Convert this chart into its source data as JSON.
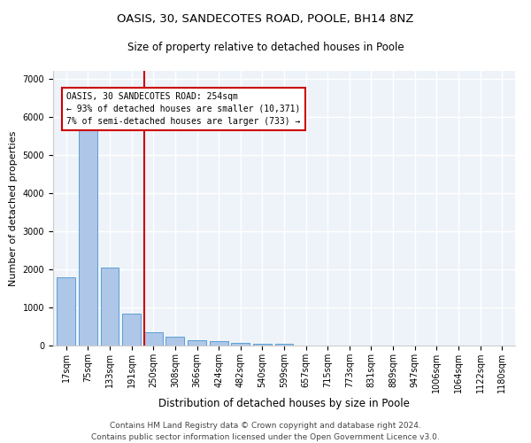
{
  "title1": "OASIS, 30, SANDECOTES ROAD, POOLE, BH14 8NZ",
  "title2": "Size of property relative to detached houses in Poole",
  "xlabel": "Distribution of detached houses by size in Poole",
  "ylabel": "Number of detached properties",
  "categories": [
    "17sqm",
    "75sqm",
    "133sqm",
    "191sqm",
    "250sqm",
    "308sqm",
    "366sqm",
    "424sqm",
    "482sqm",
    "540sqm",
    "599sqm",
    "657sqm",
    "715sqm",
    "773sqm",
    "831sqm",
    "889sqm",
    "947sqm",
    "1006sqm",
    "1064sqm",
    "1122sqm",
    "1180sqm"
  ],
  "values": [
    1780,
    5790,
    2050,
    840,
    340,
    230,
    130,
    110,
    75,
    55,
    55,
    0,
    0,
    0,
    0,
    0,
    0,
    0,
    0,
    0,
    0
  ],
  "bar_color": "#aec6e8",
  "bar_edge_color": "#5a9fd4",
  "vline_color": "#cc0000",
  "annotation_text": "OASIS, 30 SANDECOTES ROAD: 254sqm\n← 93% of detached houses are smaller (10,371)\n7% of semi-detached houses are larger (733) →",
  "annotation_box_color": "white",
  "annotation_box_edge": "#cc0000",
  "ylim": [
    0,
    7200
  ],
  "yticks": [
    0,
    1000,
    2000,
    3000,
    4000,
    5000,
    6000,
    7000
  ],
  "bg_color": "#eef3f9",
  "grid_color": "white",
  "footer": "Contains HM Land Registry data © Crown copyright and database right 2024.\nContains public sector information licensed under the Open Government Licence v3.0.",
  "title1_fontsize": 9.5,
  "title2_fontsize": 8.5,
  "xlabel_fontsize": 8.5,
  "ylabel_fontsize": 8,
  "tick_fontsize": 7,
  "footer_fontsize": 6.5
}
